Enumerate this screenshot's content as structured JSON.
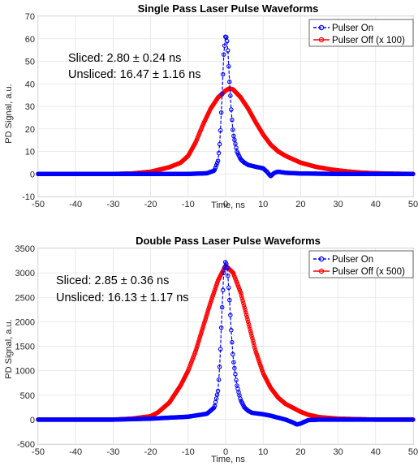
{
  "chart_data": [
    {
      "type": "line",
      "title": "Single Pass Laser Pulse Waveforms",
      "xlabel": "Time, ns",
      "ylabel": "PD Signal, a.u.",
      "xlim": [
        -50,
        50
      ],
      "ylim": [
        -10,
        70
      ],
      "xticks": [
        -50,
        -40,
        -30,
        -20,
        -10,
        0,
        10,
        20,
        30,
        40,
        50
      ],
      "yticks": [
        -10,
        0,
        10,
        20,
        30,
        40,
        50,
        60,
        70
      ],
      "grid": true,
      "legend_position": "top-right",
      "annotations": [
        "Sliced: 2.80 ± 0.24 ns",
        "Unsliced: 16.47 ± 1.16 ns"
      ],
      "series": [
        {
          "name": "Pulser On",
          "color": "#0000ff",
          "marker": "circle",
          "linestyle": "dashed",
          "x": [
            -50,
            -40,
            -30,
            -20,
            -10,
            -5,
            -3,
            -2,
            -1.5,
            -1,
            -0.5,
            0,
            0.5,
            1,
            1.5,
            2,
            3,
            4,
            5,
            6,
            8,
            10,
            11,
            12,
            13,
            14,
            16,
            20,
            30,
            40,
            50
          ],
          "y": [
            0,
            0,
            0,
            0,
            0,
            0.3,
            1.5,
            6,
            15,
            33,
            53,
            62,
            58,
            42,
            28,
            18,
            10,
            6.5,
            5,
            4,
            3.2,
            2.5,
            1,
            -1,
            0.5,
            1,
            0.5,
            0.2,
            0,
            0,
            0
          ]
        },
        {
          "name": "Pulser Off (x 100)",
          "color": "#ff0000",
          "marker": "circle",
          "linestyle": "solid",
          "x": [
            -50,
            -40,
            -30,
            -25,
            -20,
            -15,
            -12,
            -10,
            -8,
            -6,
            -4,
            -2,
            0,
            1,
            2,
            4,
            6,
            8,
            10,
            12,
            14,
            16,
            18,
            20,
            24,
            28,
            32,
            36,
            40,
            45,
            50
          ],
          "y": [
            0,
            0,
            0,
            0.2,
            1,
            3,
            5,
            8,
            14,
            22,
            29,
            34,
            37,
            38,
            37.5,
            34,
            29,
            23,
            17.5,
            13,
            10,
            8,
            6.5,
            5,
            3.2,
            2,
            1.2,
            0.6,
            0.3,
            0.1,
            0
          ]
        }
      ]
    },
    {
      "type": "line",
      "title": "Double Pass Laser Pulse Waveforms",
      "xlabel": "Time, ns",
      "ylabel": "PD Signal, a.u.",
      "xlim": [
        -50,
        50
      ],
      "ylim": [
        -500,
        3500
      ],
      "xticks": [
        -50,
        -40,
        -30,
        -20,
        -10,
        0,
        10,
        20,
        30,
        40,
        50
      ],
      "yticks": [
        -500,
        0,
        500,
        1000,
        1500,
        2000,
        2500,
        3000,
        3500
      ],
      "grid": true,
      "legend_position": "top-right",
      "annotations": [
        "Sliced: 2.85 ± 0.36 ns",
        "Unsliced: 16.13 ± 1.17 ns"
      ],
      "series": [
        {
          "name": "Pulser On",
          "color": "#0000ff",
          "marker": "circle",
          "linestyle": "dashed",
          "x": [
            -50,
            -40,
            -30,
            -20,
            -10,
            -5,
            -3,
            -2,
            -1.5,
            -1,
            -0.5,
            0,
            0.5,
            1,
            1.5,
            2,
            3,
            4,
            5,
            6,
            7,
            8,
            10,
            12,
            14,
            16,
            18,
            19,
            20,
            22,
            25,
            30,
            40,
            50
          ],
          "y": [
            0,
            0,
            0,
            20,
            60,
            120,
            250,
            600,
            1200,
            2200,
            3000,
            3250,
            3050,
            2500,
            1800,
            1250,
            700,
            400,
            250,
            180,
            140,
            130,
            110,
            80,
            40,
            0,
            -60,
            -100,
            -80,
            -10,
            0,
            0,
            0,
            0
          ]
        },
        {
          "name": "Pulser Off (x 500)",
          "color": "#ff0000",
          "marker": "circle",
          "linestyle": "solid",
          "x": [
            -50,
            -40,
            -30,
            -25,
            -20,
            -18,
            -15,
            -12,
            -10,
            -8,
            -6,
            -4,
            -2,
            0,
            2,
            4,
            6,
            8,
            10,
            12,
            14,
            16,
            18,
            20,
            22,
            25,
            30,
            35,
            40,
            45,
            50
          ],
          "y": [
            0,
            0,
            0,
            20,
            70,
            150,
            350,
            700,
            1000,
            1400,
            1900,
            2400,
            2850,
            3150,
            3000,
            2600,
            2000,
            1400,
            950,
            650,
            450,
            320,
            240,
            160,
            100,
            50,
            20,
            10,
            0,
            0,
            0
          ]
        }
      ]
    }
  ]
}
